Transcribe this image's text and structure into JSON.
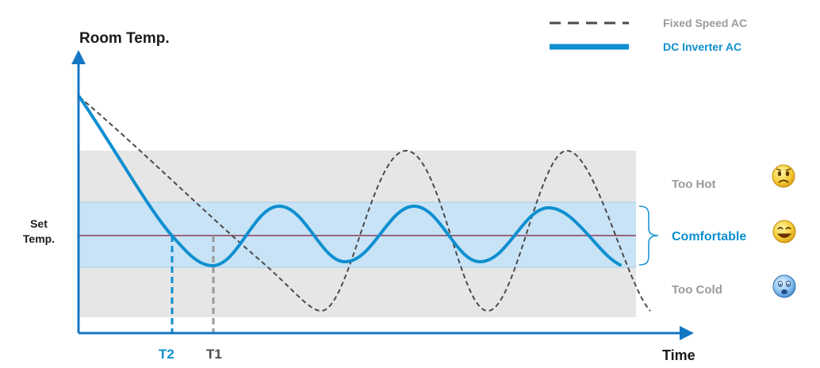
{
  "axis": {
    "y_label": "Room Temp.",
    "x_label": "Time",
    "set_temp_line1": "Set",
    "set_temp_line2": "Temp."
  },
  "legend": {
    "fixed_speed": "Fixed Speed AC",
    "dc_inverter": "DC Inverter AC"
  },
  "zones": {
    "too_hot": "Too Hot",
    "comfortable": "Comfortable",
    "too_cold": "Too Cold"
  },
  "markers": {
    "t2": "T2",
    "t1": "T1"
  },
  "colors": {
    "inverter_blue": "#0e8fd0",
    "dashed_gray": "#4a4a4a",
    "label_gray": "#9a9a9a",
    "axis_blue": "#1477c4",
    "comfort_band": "#c7e3f5",
    "outer_band": "#e6e6e6",
    "set_line": "#8a3a5a"
  },
  "icons": {
    "too_hot": "worried-face-icon",
    "comfortable": "smiling-face-icon",
    "too_cold": "crying-face-icon"
  }
}
